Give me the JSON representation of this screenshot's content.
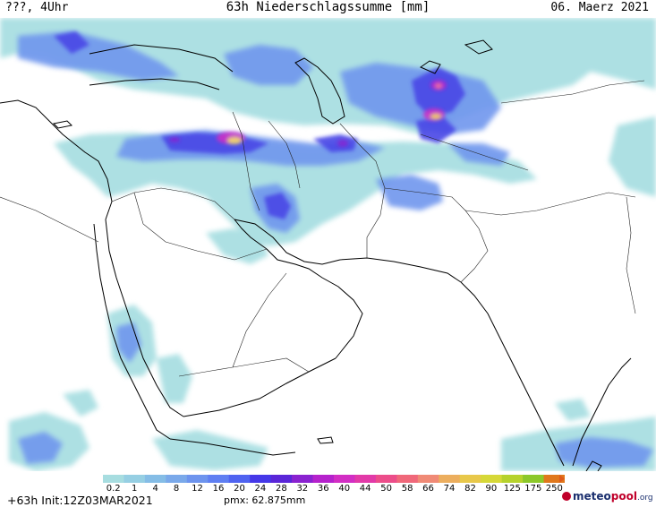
{
  "header": {
    "left": "???, 4Uhr",
    "title": "63h Niederschlagssumme [mm]",
    "date": "06. Maerz 2021"
  },
  "legend": {
    "labels": [
      "0.2",
      "1",
      "4",
      "8",
      "12",
      "16",
      "20",
      "24",
      "28",
      "32",
      "36",
      "40",
      "44",
      "50",
      "58",
      "66",
      "74",
      "82",
      "90",
      "125",
      "175",
      "250"
    ],
    "colors": [
      "#a7dde0",
      "#96cfe3",
      "#85bde6",
      "#7aa9ea",
      "#6d94ee",
      "#5f7ff2",
      "#4f63f0",
      "#4538e8",
      "#5a26d8",
      "#8a22d0",
      "#b522cc",
      "#d22ec4",
      "#e23aa8",
      "#ec4d8a",
      "#f0687a",
      "#f08a76",
      "#ecae5e",
      "#e8c84a",
      "#d6d838",
      "#b6d22c",
      "#8cc82a",
      "#e0781c"
    ]
  },
  "footer": {
    "run_info": "+63h Init:12Z03MAR2021",
    "pmx": "pmx: 62.875mm",
    "logo_a": "meteo",
    "logo_b": "pool",
    "logo_c": ".org"
  }
}
